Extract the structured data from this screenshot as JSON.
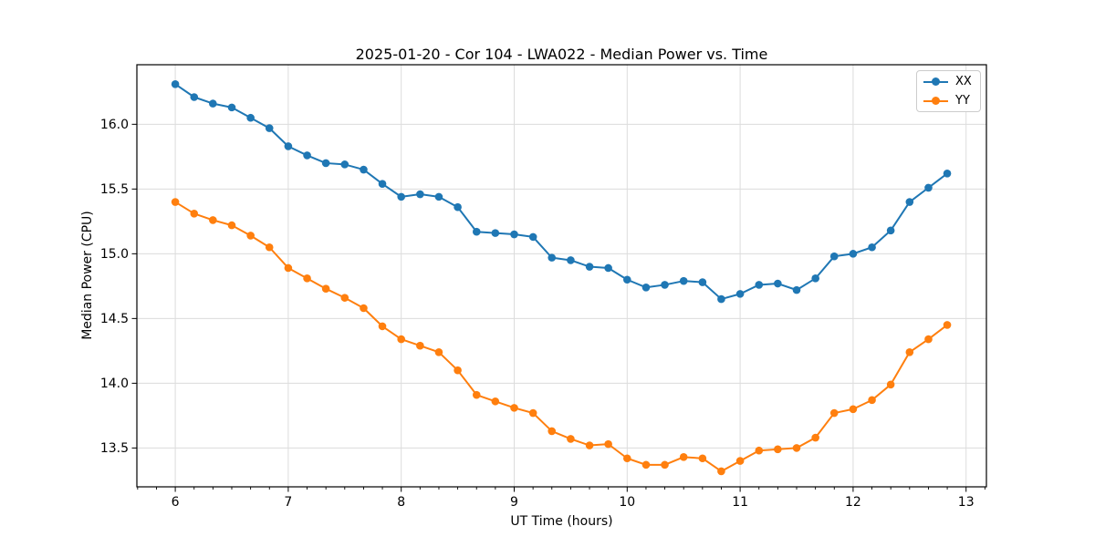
{
  "figure": {
    "background": "#ffffff"
  },
  "chart_data": {
    "type": "line",
    "title": "2025-01-20 - Cor 104 - LWA022 - Median Power vs. Time",
    "xlabel": "UT Time (hours)",
    "ylabel": "Median Power (CPU)",
    "x": [
      6.0,
      6.167,
      6.333,
      6.5,
      6.667,
      6.833,
      7.0,
      7.167,
      7.333,
      7.5,
      7.667,
      7.833,
      8.0,
      8.167,
      8.333,
      8.5,
      8.667,
      8.833,
      9.0,
      9.167,
      9.333,
      9.5,
      9.667,
      9.833,
      10.0,
      10.167,
      10.333,
      10.5,
      10.667,
      10.833,
      11.0,
      11.167,
      11.333,
      11.5,
      11.667,
      11.833,
      12.0,
      12.167,
      12.333,
      12.5,
      12.667,
      12.833
    ],
    "series": [
      {
        "name": "XX",
        "color": "#1f77b4",
        "values": [
          16.31,
          16.21,
          16.16,
          16.13,
          16.05,
          15.97,
          15.83,
          15.76,
          15.7,
          15.69,
          15.65,
          15.54,
          15.44,
          15.46,
          15.44,
          15.36,
          15.17,
          15.16,
          15.15,
          15.13,
          14.97,
          14.95,
          14.9,
          14.89,
          14.8,
          14.74,
          14.76,
          14.79,
          14.78,
          14.65,
          14.69,
          14.76,
          14.77,
          14.72,
          14.81,
          14.98,
          15.0,
          15.05,
          15.18,
          15.4,
          15.51,
          15.62
        ]
      },
      {
        "name": "YY",
        "color": "#ff7f0e",
        "values": [
          15.4,
          15.31,
          15.26,
          15.22,
          15.14,
          15.05,
          14.89,
          14.81,
          14.73,
          14.66,
          14.58,
          14.44,
          14.34,
          14.29,
          14.24,
          14.1,
          13.91,
          13.86,
          13.81,
          13.77,
          13.63,
          13.57,
          13.52,
          13.53,
          13.42,
          13.37,
          13.37,
          13.43,
          13.42,
          13.32,
          13.4,
          13.48,
          13.49,
          13.5,
          13.58,
          13.77,
          13.8,
          13.87,
          13.99,
          14.24,
          14.34,
          14.45
        ]
      }
    ],
    "xlim": [
      5.66,
      13.18
    ],
    "ylim": [
      13.2,
      16.46
    ],
    "xticks": [
      6,
      7,
      8,
      9,
      10,
      11,
      12,
      13
    ],
    "yticks": [
      13.5,
      14.0,
      14.5,
      15.0,
      15.5,
      16.0
    ],
    "x_minor_tick_step": 0.16667,
    "grid": "major-both",
    "grid_color": "#dcdcdc",
    "legend": {
      "position": "upper right",
      "entries": [
        "XX",
        "YY"
      ]
    }
  }
}
